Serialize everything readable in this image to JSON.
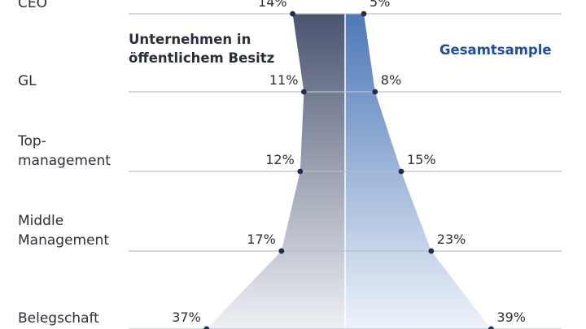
{
  "chart_data": {
    "type": "area",
    "levels": [
      "CEO",
      "GL",
      "Top-\nmanagement",
      "Middle\nManagement",
      "Belegschaft"
    ],
    "series": [
      {
        "name": "Unternehmen in\nöffentlichem Besitz",
        "values": [
          14,
          11,
          12,
          17,
          37
        ],
        "side": "left"
      },
      {
        "name": "Gesamtsample",
        "values": [
          5,
          8,
          15,
          23,
          39
        ],
        "side": "right"
      }
    ],
    "value_suffix": "%",
    "colors": {
      "left_dark": "#4a5470",
      "left_light": "#eef0f4",
      "right_dark": "#4d78b7",
      "right_light": "#eef3fa",
      "line": "#b9bec8",
      "dot": "#1f2d52",
      "left_label": "#2a2f3a",
      "right_label": "#1f4f9b"
    }
  }
}
